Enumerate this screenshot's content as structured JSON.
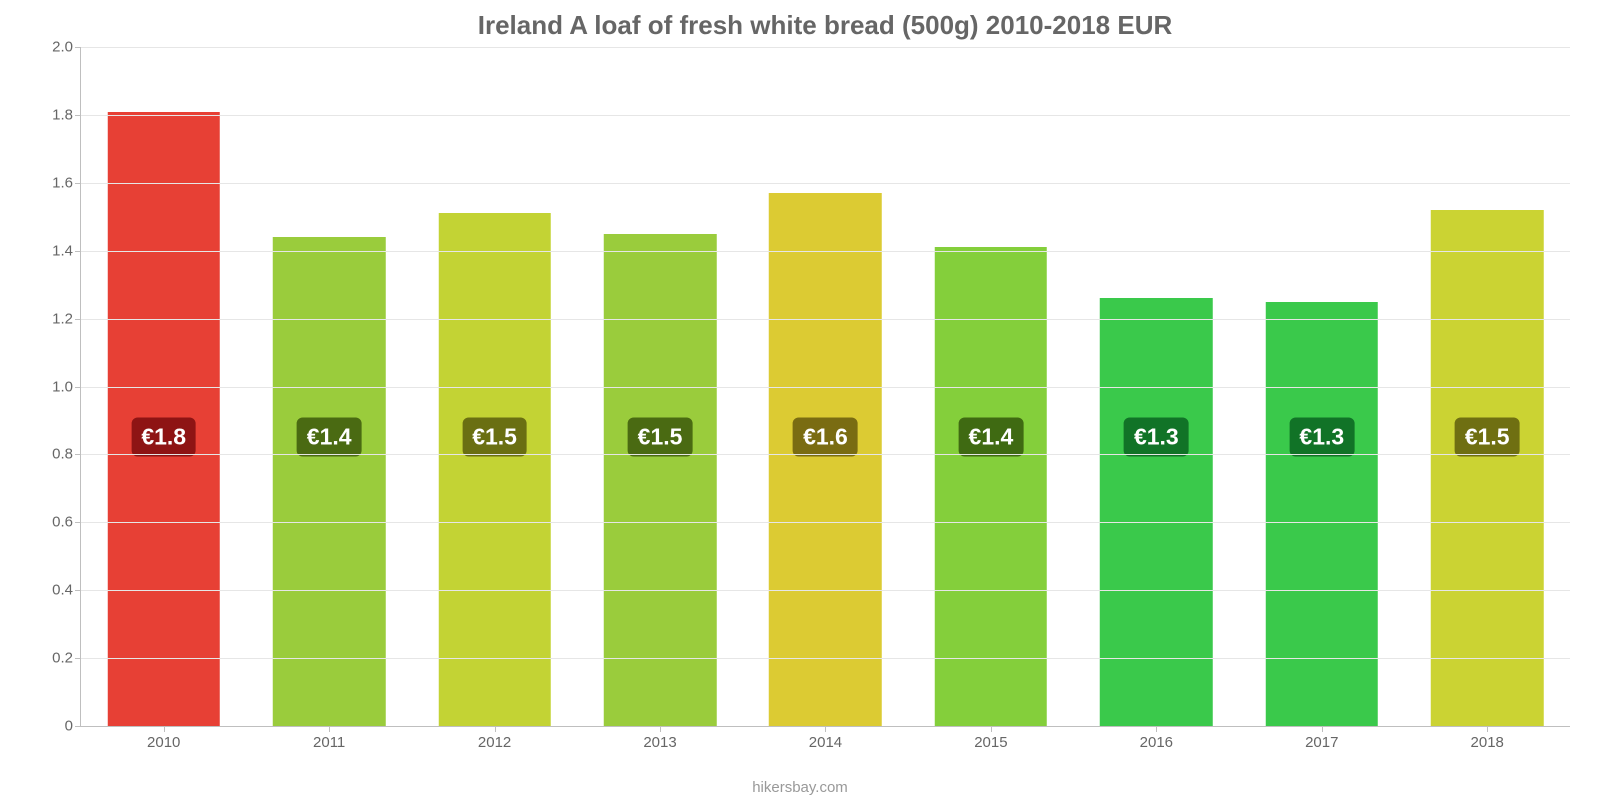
{
  "chart": {
    "type": "bar",
    "title": "Ireland A loaf of fresh white bread (500g) 2010-2018 EUR",
    "title_fontsize": 26,
    "title_color": "#666666",
    "attribution": "hikersbay.com",
    "attribution_color": "#999999",
    "background_color": "#ffffff",
    "grid_color": "#e6e6e6",
    "axis_color": "#bfbfbf",
    "tick_label_color": "#666666",
    "tick_label_fontsize": 15,
    "ylim": [
      0,
      2.0
    ],
    "ytick_step": 0.2,
    "yticks": [
      "0",
      "0.2",
      "0.4",
      "0.6",
      "0.8",
      "1.0",
      "1.2",
      "1.4",
      "1.6",
      "1.8",
      "2.0"
    ],
    "bar_width_ratio": 0.68,
    "badge_center_value": 0.85,
    "badge_fontsize": 23,
    "badge_text_color": "#ffffff",
    "categories": [
      "2010",
      "2011",
      "2012",
      "2013",
      "2014",
      "2015",
      "2016",
      "2017",
      "2018"
    ],
    "series": [
      {
        "value": 1.81,
        "label": "€1.8",
        "bar_color": "#e74035",
        "badge_bg": "#8e1414"
      },
      {
        "value": 1.44,
        "label": "€1.4",
        "bar_color": "#9acc3c",
        "badge_bg": "#4a6a12"
      },
      {
        "value": 1.51,
        "label": "€1.5",
        "bar_color": "#c3d334",
        "badge_bg": "#6a6f12"
      },
      {
        "value": 1.45,
        "label": "€1.5",
        "bar_color": "#9acc3c",
        "badge_bg": "#4a6a12"
      },
      {
        "value": 1.57,
        "label": "€1.6",
        "bar_color": "#dccb33",
        "badge_bg": "#7a6c12"
      },
      {
        "value": 1.41,
        "label": "€1.4",
        "bar_color": "#84cf3b",
        "badge_bg": "#3f6a12"
      },
      {
        "value": 1.26,
        "label": "€1.3",
        "bar_color": "#3ac94b",
        "badge_bg": "#117327"
      },
      {
        "value": 1.25,
        "label": "€1.3",
        "bar_color": "#3ac94b",
        "badge_bg": "#117327"
      },
      {
        "value": 1.52,
        "label": "€1.5",
        "bar_color": "#cbd333",
        "badge_bg": "#6f6f12"
      }
    ]
  }
}
